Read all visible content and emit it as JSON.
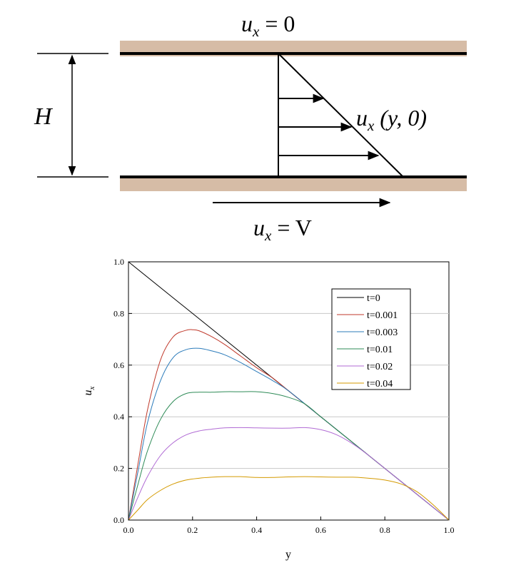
{
  "diagram": {
    "top_label_var": "u",
    "top_label_sub": "x",
    "top_label_rest": " = 0",
    "height_label": "H",
    "profile_label_var": "u",
    "profile_label_sub": "x",
    "profile_label_rest": " (y, 0)",
    "bottom_label_var": "u",
    "bottom_label_sub": "x",
    "bottom_label_rest": " = V",
    "wall_color": "#d6bca6"
  },
  "chart_data": {
    "type": "line",
    "xlabel": "y",
    "ylabel_var": "u",
    "ylabel_sub": "x",
    "xlim": [
      0.0,
      1.0
    ],
    "ylim": [
      0.0,
      1.0
    ],
    "xticks": [
      "0.0",
      "0.2",
      "0.4",
      "0.6",
      "0.8",
      "1.0"
    ],
    "yticks": [
      "0.0",
      "0.2",
      "0.4",
      "0.6",
      "0.8",
      "1.0"
    ],
    "grid": "horizontal",
    "legend_position": "top-right",
    "series": [
      {
        "name": "t=0",
        "color": "#000000",
        "x": [
          0.0,
          1.0
        ],
        "y": [
          1.0,
          0.0
        ]
      },
      {
        "name": "t=0.001",
        "color": "#c0392b",
        "x": [
          0.0,
          0.03,
          0.06,
          0.1,
          0.14,
          0.18,
          0.2,
          0.22,
          0.26,
          0.3,
          0.35,
          0.4,
          0.45,
          0.5,
          0.6,
          0.7,
          0.8,
          0.9,
          1.0
        ],
        "y": [
          0.0,
          0.22,
          0.43,
          0.62,
          0.71,
          0.735,
          0.737,
          0.733,
          0.71,
          0.68,
          0.635,
          0.59,
          0.55,
          0.5,
          0.4,
          0.3,
          0.2,
          0.1,
          0.0
        ]
      },
      {
        "name": "t=0.003",
        "color": "#2b7bba",
        "x": [
          0.0,
          0.03,
          0.06,
          0.1,
          0.14,
          0.18,
          0.22,
          0.26,
          0.3,
          0.35,
          0.4,
          0.45,
          0.5,
          0.6,
          0.7,
          0.8,
          0.9,
          1.0
        ],
        "y": [
          0.0,
          0.19,
          0.38,
          0.54,
          0.63,
          0.66,
          0.665,
          0.655,
          0.64,
          0.61,
          0.575,
          0.54,
          0.5,
          0.4,
          0.3,
          0.2,
          0.1,
          0.0
        ]
      },
      {
        "name": "t=0.01",
        "color": "#2e8b57",
        "x": [
          0.0,
          0.03,
          0.06,
          0.1,
          0.14,
          0.18,
          0.22,
          0.26,
          0.3,
          0.35,
          0.4,
          0.45,
          0.5,
          0.55,
          0.6,
          0.65,
          0.7,
          0.75,
          0.8,
          0.85,
          0.9,
          0.95,
          1.0
        ],
        "y": [
          0.0,
          0.14,
          0.27,
          0.39,
          0.46,
          0.49,
          0.495,
          0.495,
          0.497,
          0.497,
          0.497,
          0.49,
          0.475,
          0.45,
          0.4,
          0.35,
          0.3,
          0.25,
          0.2,
          0.15,
          0.1,
          0.05,
          0.0
        ]
      },
      {
        "name": "t=0.02",
        "color": "#b06ad4",
        "x": [
          0.0,
          0.03,
          0.06,
          0.1,
          0.14,
          0.18,
          0.22,
          0.26,
          0.3,
          0.35,
          0.4,
          0.45,
          0.5,
          0.55,
          0.6,
          0.65,
          0.7,
          0.75,
          0.8,
          0.85,
          0.9,
          0.95,
          1.0
        ],
        "y": [
          0.0,
          0.09,
          0.17,
          0.25,
          0.3,
          0.33,
          0.345,
          0.352,
          0.357,
          0.358,
          0.357,
          0.356,
          0.356,
          0.358,
          0.35,
          0.33,
          0.295,
          0.25,
          0.2,
          0.15,
          0.1,
          0.05,
          0.0
        ]
      },
      {
        "name": "t=0.04",
        "color": "#d49a00",
        "x": [
          0.0,
          0.03,
          0.06,
          0.1,
          0.14,
          0.18,
          0.22,
          0.26,
          0.3,
          0.35,
          0.4,
          0.45,
          0.5,
          0.55,
          0.6,
          0.65,
          0.7,
          0.75,
          0.8,
          0.85,
          0.9,
          0.95,
          1.0
        ],
        "y": [
          0.0,
          0.04,
          0.08,
          0.115,
          0.14,
          0.155,
          0.162,
          0.166,
          0.168,
          0.168,
          0.165,
          0.165,
          0.167,
          0.168,
          0.167,
          0.166,
          0.166,
          0.162,
          0.155,
          0.14,
          0.11,
          0.06,
          0.0
        ]
      }
    ]
  }
}
